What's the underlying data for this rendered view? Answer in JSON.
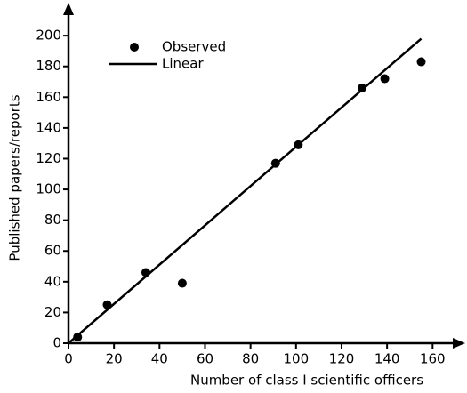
{
  "chart_data": {
    "type": "scatter",
    "xlabel": "Number of class I scientific officers",
    "ylabel": "Published papers/reports",
    "xlim": [
      0,
      172
    ],
    "ylim": [
      0,
      218
    ],
    "xticks": [
      0,
      20,
      40,
      60,
      80,
      100,
      120,
      140,
      160
    ],
    "yticks": [
      0,
      20,
      40,
      60,
      80,
      100,
      120,
      140,
      160,
      180,
      200
    ],
    "series": [
      {
        "name": "Observed",
        "color": "#000000",
        "mode": "markers",
        "x": [
          4,
          17,
          34,
          50,
          91,
          101,
          129,
          139,
          155
        ],
        "values": [
          4,
          25,
          46,
          39,
          117,
          129,
          166,
          172,
          183
        ]
      },
      {
        "name": "Linear",
        "color": "#000000",
        "mode": "line",
        "x": [
          0,
          155
        ],
        "values": [
          0,
          198
        ]
      }
    ]
  }
}
